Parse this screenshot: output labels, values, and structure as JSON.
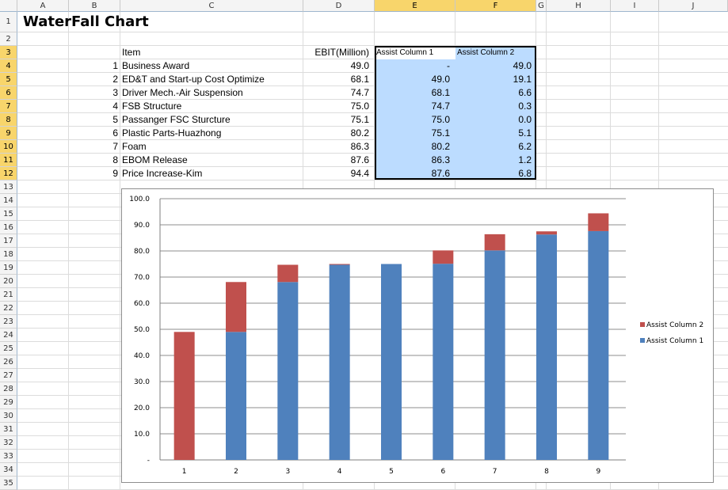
{
  "columns": [
    "A",
    "B",
    "C",
    "D",
    "E",
    "F",
    "G",
    "H",
    "I",
    "J"
  ],
  "selected_columns": [
    "E",
    "F"
  ],
  "rows": [
    "1",
    "2",
    "3",
    "4",
    "5",
    "6",
    "7",
    "8",
    "9",
    "10",
    "11",
    "12",
    "13",
    "14",
    "15",
    "16",
    "17",
    "18",
    "19",
    "20",
    "21",
    "22",
    "23",
    "24",
    "25",
    "26",
    "27",
    "28",
    "29",
    "30",
    "31",
    "32",
    "33",
    "34",
    "35"
  ],
  "selected_rows": [
    "3",
    "4",
    "5",
    "6",
    "7",
    "8",
    "9",
    "10",
    "11",
    "12"
  ],
  "sheet": {
    "title": "WaterFall Chart",
    "headers": {
      "item": "Item",
      "ebit": "EBIT(Million)",
      "assist1": "Assist Column 1",
      "assist2": "Assist Column 2"
    },
    "table": [
      {
        "no": "1",
        "item": "Business Award",
        "ebit": "49.0",
        "a1": "-",
        "a2": "49.0"
      },
      {
        "no": "2",
        "item": "ED&T and Start-up Cost Optimize",
        "ebit": "68.1",
        "a1": "49.0",
        "a2": "19.1"
      },
      {
        "no": "3",
        "item": "Driver Mech.-Air Suspension",
        "ebit": "74.7",
        "a1": "68.1",
        "a2": "6.6"
      },
      {
        "no": "4",
        "item": "FSB Structure",
        "ebit": "75.0",
        "a1": "74.7",
        "a2": "0.3"
      },
      {
        "no": "5",
        "item": "Passanger FSC Sturcture",
        "ebit": "75.1",
        "a1": "75.0",
        "a2": "0.0"
      },
      {
        "no": "6",
        "item": "Plastic Parts-Huazhong",
        "ebit": "80.2",
        "a1": "75.1",
        "a2": "5.1"
      },
      {
        "no": "7",
        "item": "Foam",
        "ebit": "86.3",
        "a1": "80.2",
        "a2": "6.2"
      },
      {
        "no": "8",
        "item": "EBOM Release",
        "ebit": "87.6",
        "a1": "86.3",
        "a2": "1.2"
      },
      {
        "no": "9",
        "item": "Price Increase-Kim",
        "ebit": "94.4",
        "a1": "87.6",
        "a2": "6.8"
      }
    ]
  },
  "chart_data": {
    "type": "bar",
    "stacked": true,
    "categories": [
      "1",
      "2",
      "3",
      "4",
      "5",
      "6",
      "7",
      "8",
      "9"
    ],
    "series": [
      {
        "name": "Assist Column 1",
        "color": "#4f81bd",
        "values": [
          0,
          49.0,
          68.1,
          74.7,
          75.0,
          75.1,
          80.2,
          86.3,
          87.6
        ]
      },
      {
        "name": "Assist Column 2",
        "color": "#c0504d",
        "values": [
          49.0,
          19.1,
          6.6,
          0.3,
          0.0,
          5.1,
          6.2,
          1.2,
          6.8
        ]
      }
    ],
    "ylim": [
      0,
      100
    ],
    "yticks": [
      "-",
      "10.0",
      "20.0",
      "30.0",
      "40.0",
      "50.0",
      "60.0",
      "70.0",
      "80.0",
      "90.0",
      "100.0"
    ],
    "grid": true,
    "legend": "right",
    "legend_order": [
      "Assist Column 2",
      "Assist Column 1"
    ]
  }
}
